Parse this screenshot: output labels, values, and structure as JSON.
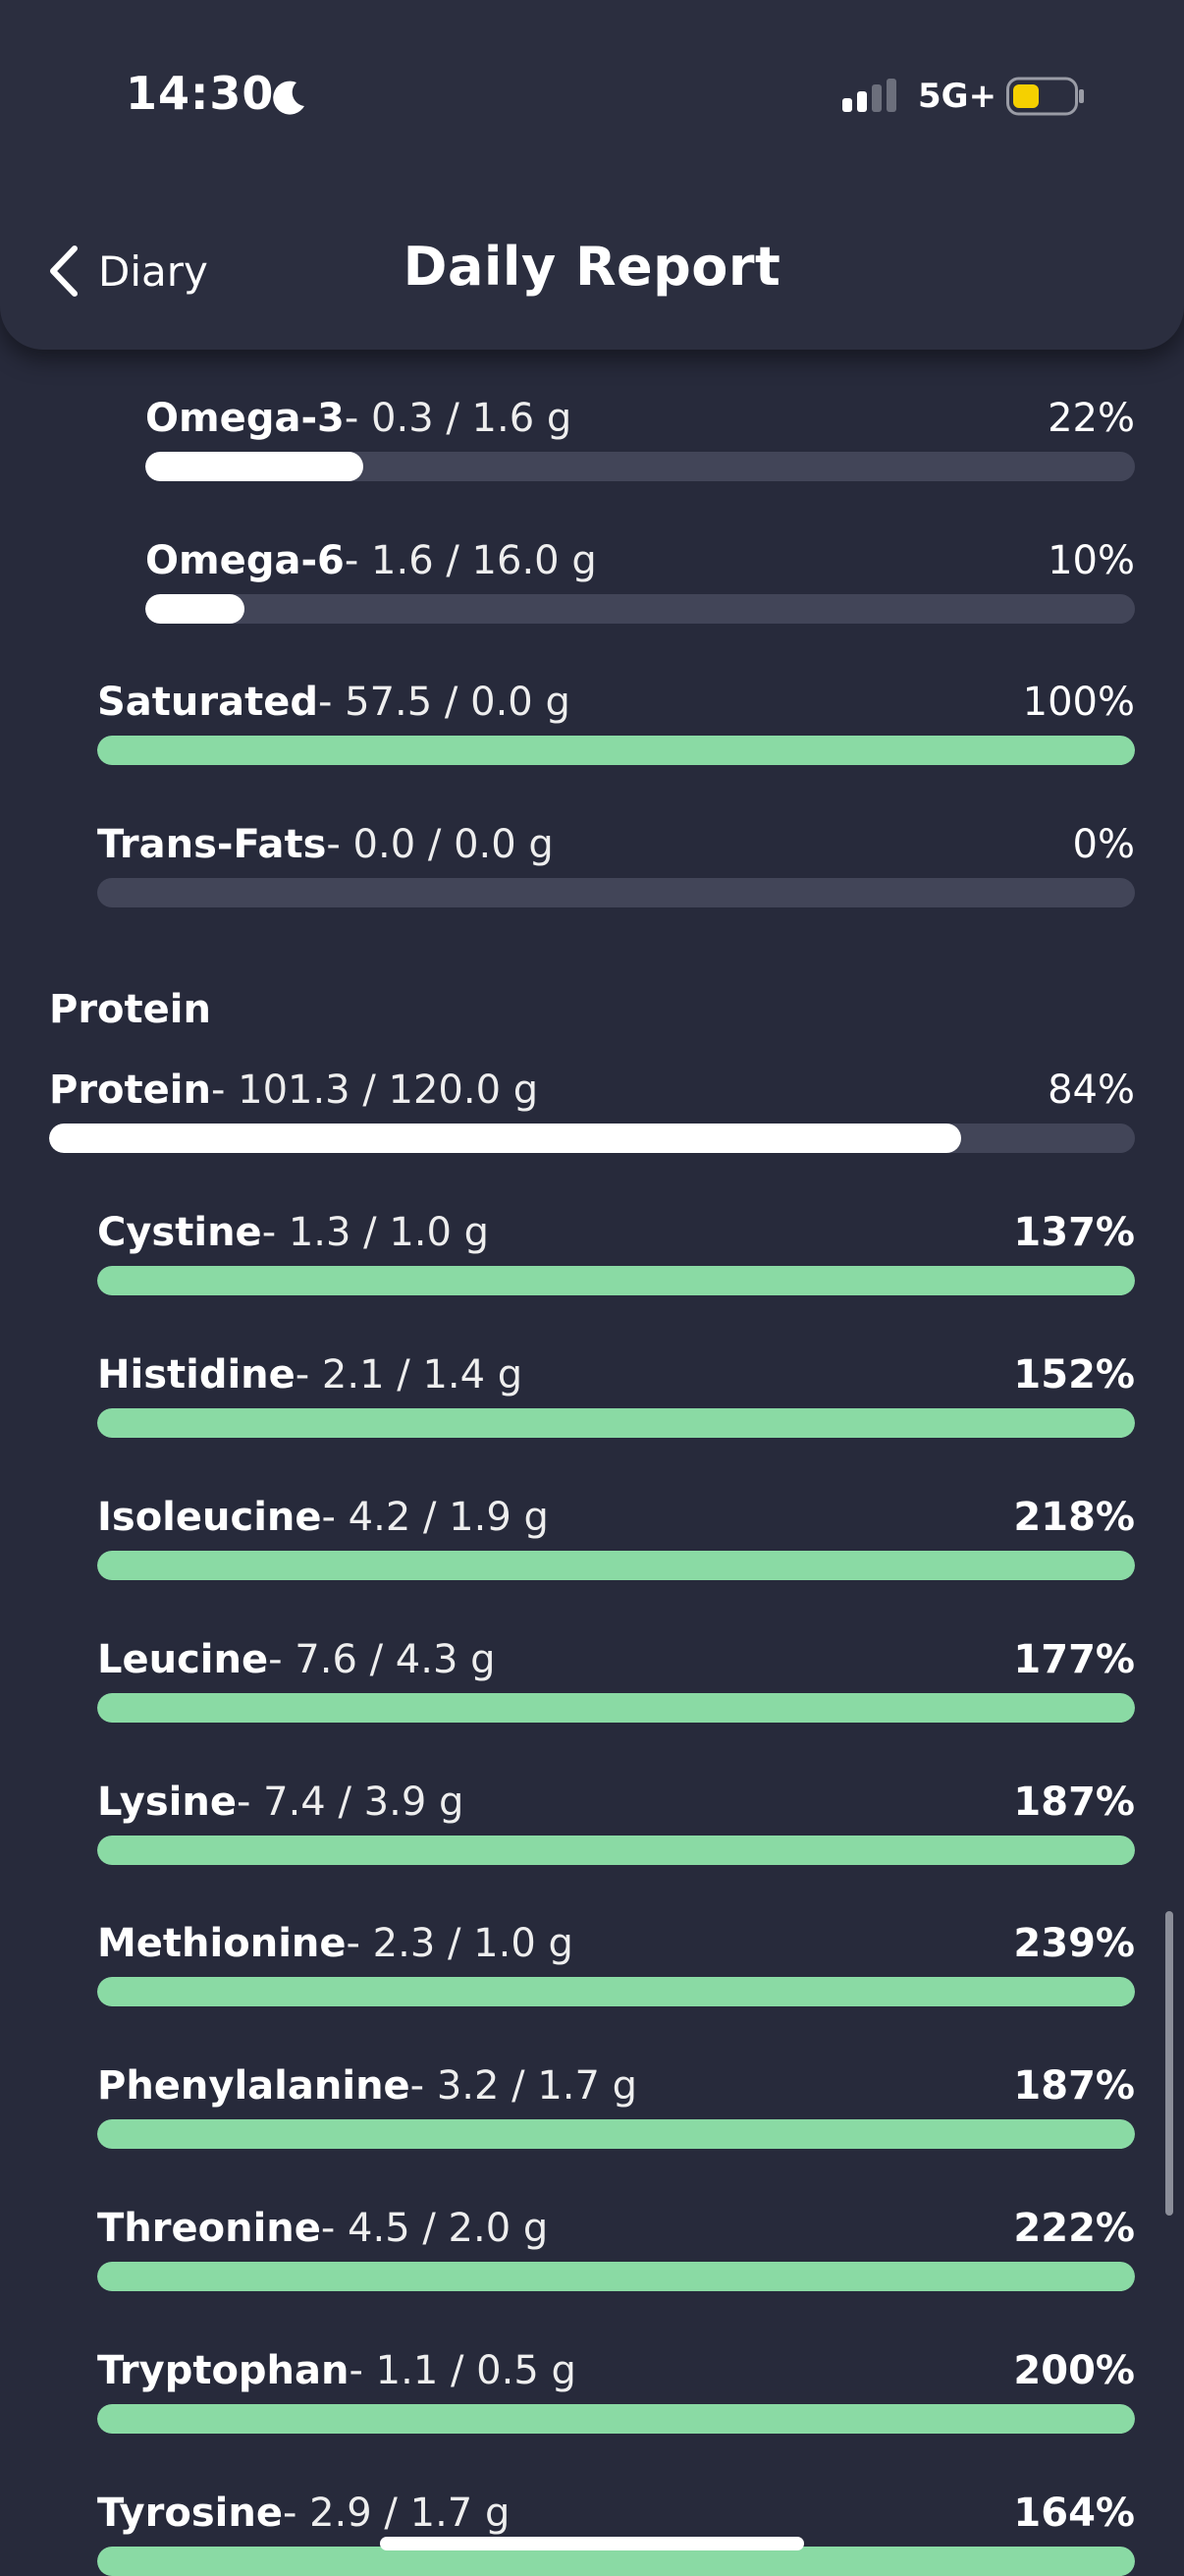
{
  "status_bar": {
    "time": "14:30",
    "network": "5G+",
    "battery_color": "#f5d000"
  },
  "header": {
    "back_label": "Diary",
    "title": "Daily Report"
  },
  "fats_sub": [
    {
      "name": "Omega-3",
      "amount": "- 0.3 / 1.6 g",
      "percent": "22%",
      "progress": 0.22,
      "color": "white"
    },
    {
      "name": "Omega-6",
      "amount": "- 1.6 / 16.0 g",
      "percent": "10%",
      "progress": 0.1,
      "color": "white"
    }
  ],
  "fats": [
    {
      "name": "Saturated",
      "amount": "- 57.5 / 0.0 g",
      "percent": "100%",
      "progress": 1.0,
      "color": "green"
    },
    {
      "name": "Trans-Fats",
      "amount": "- 0.0 / 0.0 g",
      "percent": "0%",
      "progress": 0.0,
      "color": "none"
    }
  ],
  "protein_section": {
    "title": "Protein",
    "total": {
      "name": "Protein",
      "amount": "- 101.3 / 120.0 g",
      "percent": "84%",
      "progress": 0.84,
      "color": "white"
    },
    "amino_acids": [
      {
        "name": "Cystine",
        "amount": "- 1.3 / 1.0 g",
        "percent": "137%",
        "progress": 1.0,
        "color": "green"
      },
      {
        "name": "Histidine",
        "amount": "- 2.1 / 1.4 g",
        "percent": "152%",
        "progress": 1.0,
        "color": "green"
      },
      {
        "name": "Isoleucine",
        "amount": "- 4.2 / 1.9 g",
        "percent": "218%",
        "progress": 1.0,
        "color": "green"
      },
      {
        "name": "Leucine",
        "amount": "- 7.6 / 4.3 g",
        "percent": "177%",
        "progress": 1.0,
        "color": "green"
      },
      {
        "name": "Lysine",
        "amount": "- 7.4 / 3.9 g",
        "percent": "187%",
        "progress": 1.0,
        "color": "green"
      },
      {
        "name": "Methionine",
        "amount": "- 2.3 / 1.0 g",
        "percent": "239%",
        "progress": 1.0,
        "color": "green"
      },
      {
        "name": "Phenylalanine",
        "amount": "- 3.2 / 1.7 g",
        "percent": "187%",
        "progress": 1.0,
        "color": "green"
      },
      {
        "name": "Threonine",
        "amount": "- 4.5 / 2.0 g",
        "percent": "222%",
        "progress": 1.0,
        "color": "green"
      },
      {
        "name": "Tryptophan",
        "amount": "- 1.1 / 0.5 g",
        "percent": "200%",
        "progress": 1.0,
        "color": "green"
      },
      {
        "name": "Tyrosine",
        "amount": "- 2.9 / 1.7 g",
        "percent": "164%",
        "progress": 1.0,
        "color": "green"
      }
    ]
  }
}
